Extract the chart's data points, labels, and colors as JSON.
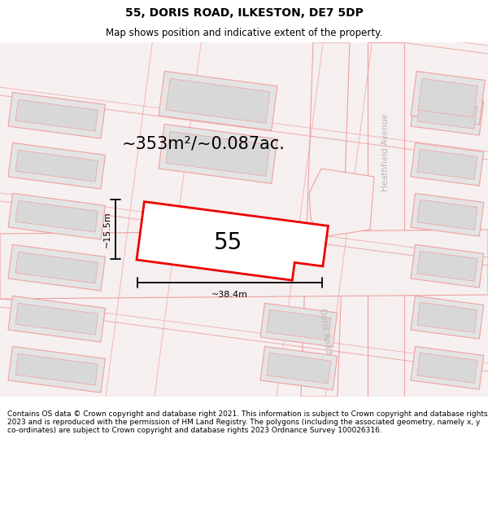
{
  "title": "55, DORIS ROAD, ILKESTON, DE7 5DP",
  "subtitle": "Map shows position and indicative extent of the property.",
  "area_text": "~353m²/~0.087ac.",
  "number_label": "55",
  "width_label": "~38.4m",
  "height_label": "~15.5m",
  "road_label_1": "Heathfield Avenue",
  "road_label_2": "Doris Road",
  "footer": "Contains OS data © Crown copyright and database right 2021. This information is subject to Crown copyright and database rights 2023 and is reproduced with the permission of HM Land Registry. The polygons (including the associated geometry, namely x, y co-ordinates) are subject to Crown copyright and database rights 2023 Ordnance Survey 100026316.",
  "bg_color": "#ffffff",
  "map_bg": "#f7f0f0",
  "building_fill": "#e4e4e4",
  "road_fill": "#ffffff",
  "highlight_fill": "#ffffff",
  "red_line": "#ee0000",
  "pink_line": "#f0a0a0",
  "text_color": "#000000",
  "road_text_color": "#b8b8b8",
  "title_fontsize": 10,
  "subtitle_fontsize": 8.5,
  "area_fontsize": 15,
  "number_fontsize": 20,
  "dim_fontsize": 8,
  "road_label_fontsize": 7.5,
  "footer_fontsize": 6.5
}
